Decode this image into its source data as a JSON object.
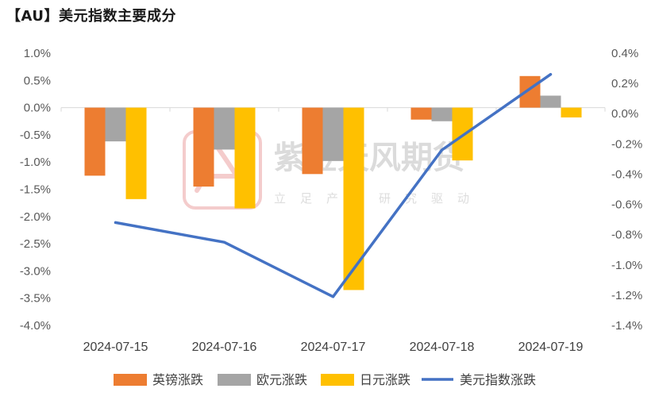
{
  "title": "【AU】美元指数主要成分",
  "watermark": {
    "brand": "紫金天风期货",
    "slogan": "立足产业研究驱动"
  },
  "chart_data": {
    "type": "bar",
    "categories": [
      "2024-07-15",
      "2024-07-16",
      "2024-07-17",
      "2024-07-18",
      "2024-07-19"
    ],
    "series": [
      {
        "name": "英镑涨跌",
        "type": "bar",
        "axis": "left",
        "color": "#ed7d31",
        "values": [
          -1.25,
          -1.45,
          -1.22,
          -0.22,
          0.58
        ]
      },
      {
        "name": "欧元涨跌",
        "type": "bar",
        "axis": "left",
        "color": "#a5a5a5",
        "values": [
          -0.62,
          -0.77,
          -0.98,
          -0.25,
          0.22
        ]
      },
      {
        "name": "日元涨跌",
        "type": "bar",
        "axis": "left",
        "color": "#ffc000",
        "values": [
          -1.68,
          -1.85,
          -3.35,
          -0.97,
          -0.18
        ]
      },
      {
        "name": "美元指数涨跌",
        "type": "line",
        "axis": "right",
        "color": "#4472c4",
        "values": [
          -0.72,
          -0.85,
          -1.21,
          -0.24,
          0.26
        ]
      }
    ],
    "left_axis": {
      "min": -4.0,
      "max": 1.0,
      "step": 0.5,
      "tick_labels": [
        "1.0%",
        "0.5%",
        "0.0%",
        "-0.5%",
        "-1.0%",
        "-1.5%",
        "-2.0%",
        "-2.5%",
        "-3.0%",
        "-3.5%",
        "-4.0%"
      ]
    },
    "right_axis": {
      "min": -1.4,
      "max": 0.4,
      "step": 0.2,
      "tick_labels": [
        "0.4%",
        "0.2%",
        "0.0%",
        "-0.2%",
        "-0.4%",
        "-0.6%",
        "-0.8%",
        "-1.0%",
        "-1.2%",
        "-1.4%"
      ]
    },
    "grid": false,
    "legend_position": "bottom"
  }
}
